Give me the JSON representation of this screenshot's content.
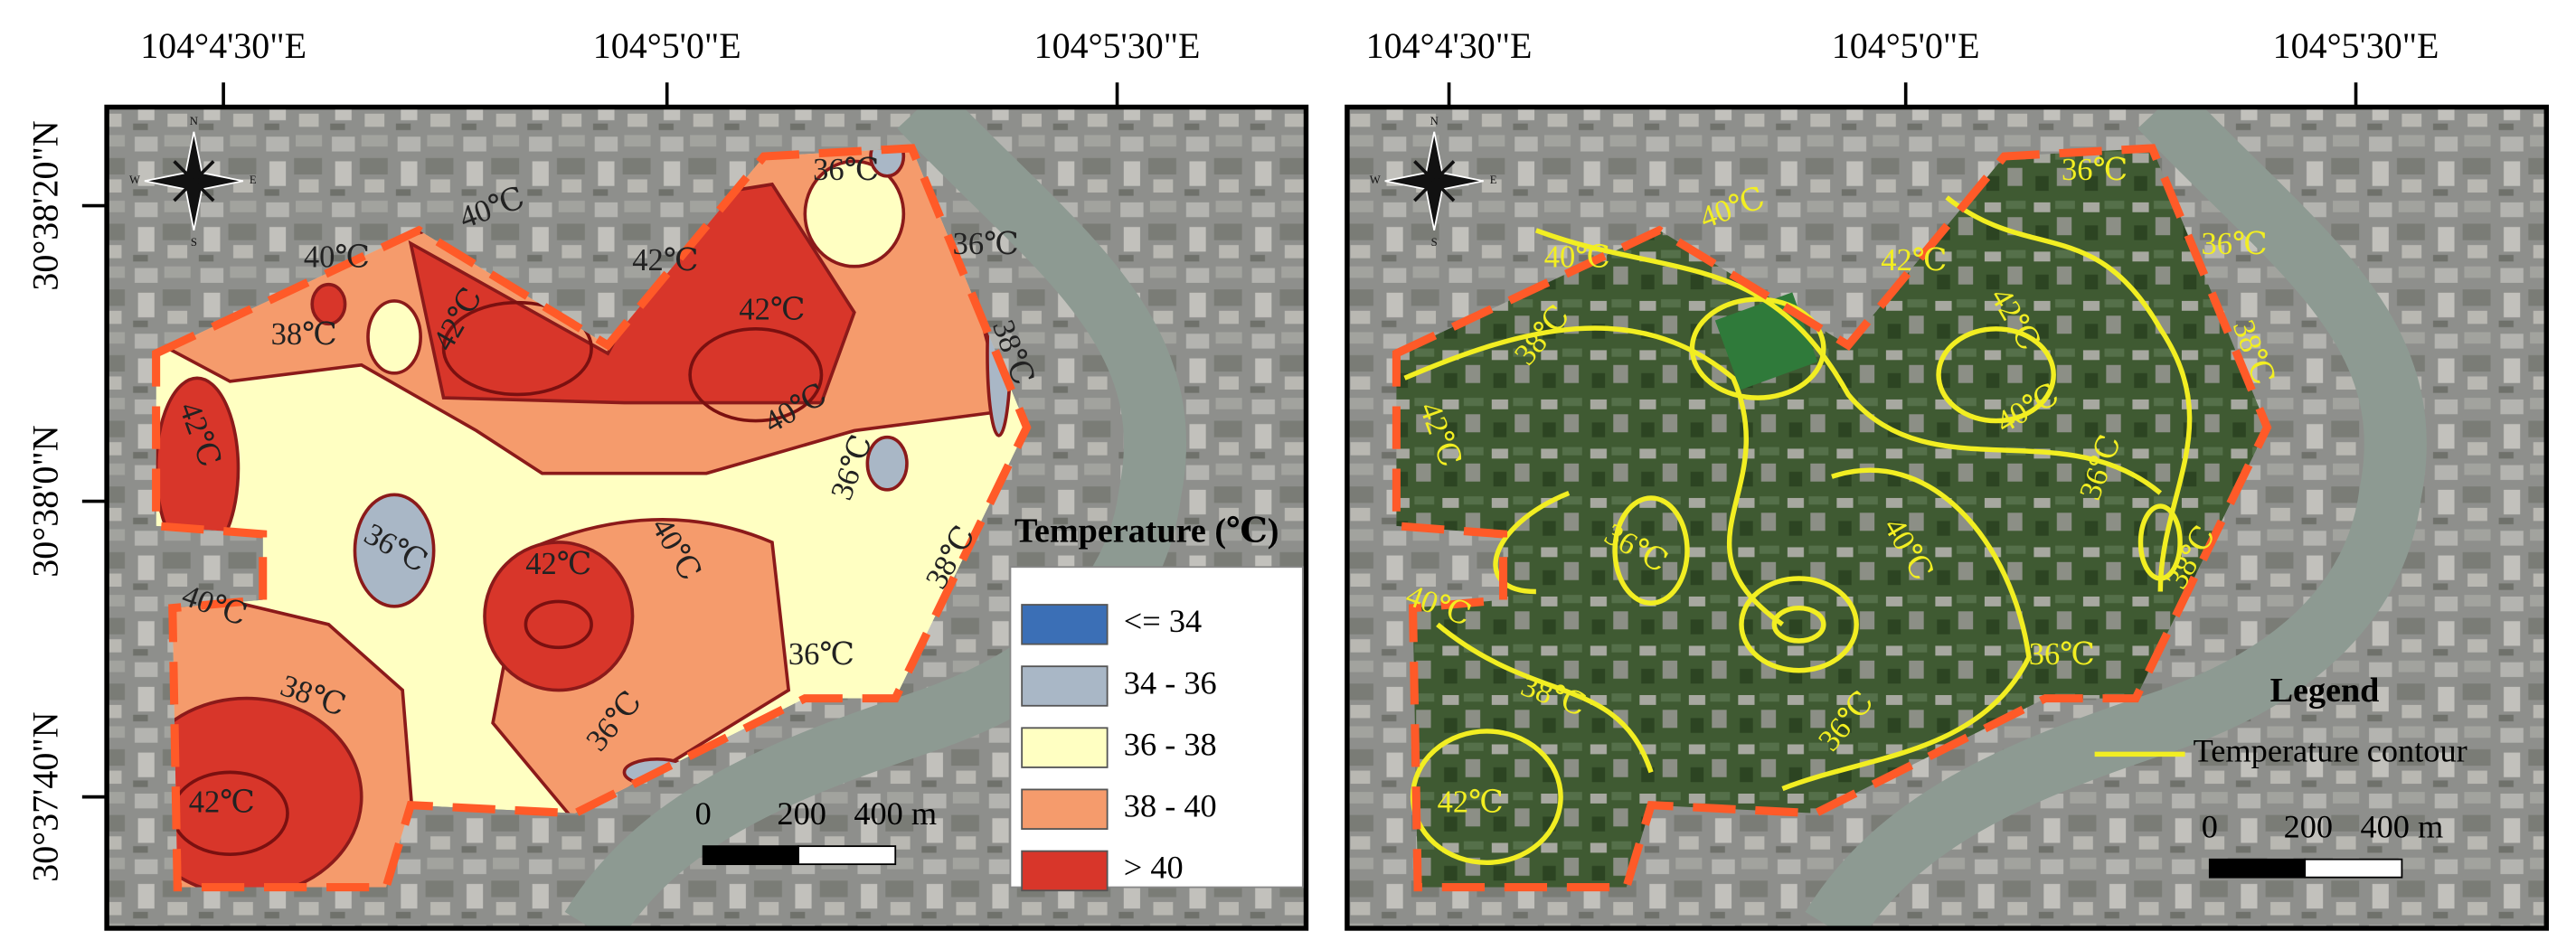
{
  "panels": [
    {
      "lon_labels": [
        "104°4'30\"E",
        "104°5'0\"E",
        "104°5'30\"E"
      ],
      "lat_labels": [
        "30°38'20\"N",
        "30°38'0\"N",
        "30°37'40\"N"
      ],
      "compass": [
        "N",
        "S",
        "E",
        "W"
      ],
      "contour_labels": [
        "40℃",
        "40℃",
        "38℃",
        "42℃",
        "42℃",
        "42℃",
        "40℃",
        "36℃",
        "36℃",
        "38℃",
        "42℃",
        "36℃",
        "36℃",
        "40℃",
        "42℃",
        "38℃",
        "40℃",
        "38℃",
        "36℃",
        "36℃",
        "42℃"
      ],
      "legend": {
        "title": "Temperature (℃)",
        "classes": [
          "<= 34",
          "34 - 36",
          "36 - 38",
          "38 - 40",
          "> 40"
        ],
        "colors": [
          "#3b6fb6",
          "#a9b7c6",
          "#ffffc2",
          "#f59b6c",
          "#d8362a"
        ]
      },
      "scale": [
        "0",
        "200",
        "400 m"
      ]
    },
    {
      "lon_labels": [
        "104°4'30\"E",
        "104°5'0\"E",
        "104°5'30\"E"
      ],
      "compass": [
        "N",
        "S",
        "E",
        "W"
      ],
      "contour_labels": [
        "40℃",
        "40℃",
        "38℃",
        "42℃",
        "42℃",
        "40℃",
        "36℃",
        "36℃",
        "38℃",
        "42℃",
        "36℃",
        "36℃",
        "40℃",
        "38℃",
        "40℃",
        "38℃",
        "36℃",
        "36℃",
        "42℃"
      ],
      "legend": {
        "title": "Legend",
        "items": [
          "Temperature contour"
        ],
        "colors": [
          "#f2ee22"
        ]
      },
      "scale": [
        "0",
        "200",
        "400 m"
      ]
    }
  ]
}
